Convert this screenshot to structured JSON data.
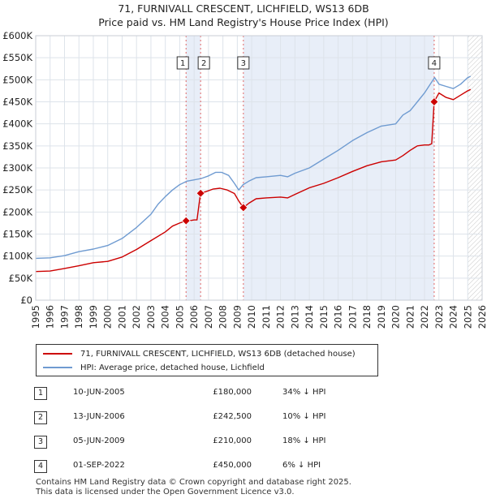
{
  "title_line1": "71, FURNIVALL CRESCENT, LICHFIELD, WS13 6DB",
  "title_line2": "Price paid vs. HM Land Registry's House Price Index (HPI)",
  "colors": {
    "hpi": "#6f9bd1",
    "price": "#cc0000",
    "shade": "#e8eef8",
    "grid": "#dde3ea",
    "hatch": "#999999"
  },
  "chart_data": {
    "type": "line",
    "title": "71, FURNIVALL CRESCENT, LICHFIELD, WS13 6DB — Price paid vs. HM Land Registry's House Price Index (HPI)",
    "xlabel": "",
    "ylabel": "",
    "xlim": [
      1995,
      2026
    ],
    "ylim": [
      0,
      600000
    ],
    "x_ticks": [
      1995,
      1996,
      1997,
      1998,
      1999,
      2000,
      2001,
      2002,
      2003,
      2004,
      2005,
      2006,
      2007,
      2008,
      2009,
      2010,
      2011,
      2012,
      2013,
      2014,
      2015,
      2016,
      2017,
      2018,
      2019,
      2020,
      2021,
      2022,
      2023,
      2024,
      2025,
      2026
    ],
    "y_ticks": [
      0,
      50000,
      100000,
      150000,
      200000,
      250000,
      300000,
      350000,
      400000,
      450000,
      500000,
      550000,
      600000
    ],
    "y_tick_labels": [
      "£0",
      "£50K",
      "£100K",
      "£150K",
      "£200K",
      "£250K",
      "£300K",
      "£350K",
      "£400K",
      "£450K",
      "£500K",
      "£550K",
      "£600K"
    ],
    "projection_start": 2025.0,
    "series": [
      {
        "name": "HPI: Average price, detached house, Lichfield",
        "x": [
          1995.0,
          1996.0,
          1997.0,
          1998.0,
          1999.0,
          2000.0,
          2001.0,
          2002.0,
          2003.0,
          2003.5,
          2004.0,
          2004.5,
          2005.0,
          2005.5,
          2006.0,
          2006.5,
          2007.0,
          2007.5,
          2007.9,
          2008.4,
          2008.8,
          2009.1,
          2009.4,
          2009.8,
          2010.3,
          2011.0,
          2012.0,
          2012.5,
          2013.0,
          2014.0,
          2015.0,
          2016.0,
          2017.0,
          2018.0,
          2019.0,
          2020.0,
          2020.5,
          2021.0,
          2021.5,
          2022.0,
          2022.4,
          2022.7,
          2023.0,
          2023.5,
          2024.0,
          2024.5,
          2025.0,
          2025.2
        ],
        "values": [
          95000,
          96000,
          101000,
          110000,
          116000,
          124000,
          140000,
          165000,
          195000,
          218000,
          235000,
          250000,
          262000,
          270000,
          273000,
          276000,
          282000,
          290000,
          290000,
          283000,
          265000,
          250000,
          262000,
          270000,
          278000,
          280000,
          283000,
          280000,
          288000,
          300000,
          320000,
          340000,
          362000,
          380000,
          395000,
          400000,
          420000,
          430000,
          450000,
          470000,
          490000,
          505000,
          490000,
          485000,
          480000,
          490000,
          505000,
          508000
        ]
      },
      {
        "name": "71, FURNIVALL CRESCENT, LICHFIELD, WS13 6DB (detached house)",
        "x": [
          1995.0,
          1996.0,
          1997.0,
          1998.0,
          1999.0,
          2000.0,
          2001.0,
          2002.0,
          2003.0,
          2004.0,
          2004.5,
          2005.0,
          2005.44,
          2005.8,
          2006.0,
          2006.2,
          2006.44,
          2006.8,
          2007.3,
          2007.8,
          2008.3,
          2008.8,
          2009.1,
          2009.42,
          2009.8,
          2010.3,
          2011.0,
          2012.0,
          2012.5,
          2013.0,
          2014.0,
          2015.0,
          2016.0,
          2017.0,
          2018.0,
          2019.0,
          2020.0,
          2020.5,
          2021.0,
          2021.5,
          2022.0,
          2022.3,
          2022.5,
          2022.67,
          2023.0,
          2023.5,
          2024.0,
          2024.5,
          2025.0,
          2025.2
        ],
        "values": [
          65000,
          66000,
          72000,
          78000,
          85000,
          88000,
          98000,
          115000,
          135000,
          155000,
          168000,
          175000,
          180000,
          181000,
          182000,
          182000,
          242500,
          246000,
          252000,
          254000,
          250000,
          242000,
          225000,
          210000,
          220000,
          230000,
          232000,
          234000,
          232000,
          240000,
          255000,
          265000,
          278000,
          292000,
          305000,
          314000,
          318000,
          328000,
          340000,
          350000,
          352000,
          352000,
          355000,
          450000,
          470000,
          460000,
          455000,
          465000,
          475000,
          478000
        ]
      }
    ],
    "sale_markers": [
      {
        "label": "1",
        "x": 2005.44,
        "value": 180000
      },
      {
        "label": "2",
        "x": 2006.45,
        "value": 242500
      },
      {
        "label": "3",
        "x": 2009.42,
        "value": 210000
      },
      {
        "label": "4",
        "x": 2022.67,
        "value": 450000
      }
    ],
    "highlight_spans": [
      [
        2005.44,
        2006.45
      ],
      [
        2009.42,
        2022.67
      ]
    ]
  },
  "legend": {
    "price_label": "71, FURNIVALL CRESCENT, LICHFIELD, WS13 6DB (detached house)",
    "hpi_label": "HPI: Average price, detached house, Lichfield"
  },
  "sales": [
    {
      "num": "1",
      "date": "10-JUN-2005",
      "price": "£180,000",
      "hpi": "34% ↓ HPI"
    },
    {
      "num": "2",
      "date": "13-JUN-2006",
      "price": "£242,500",
      "hpi": "10% ↓ HPI"
    },
    {
      "num": "3",
      "date": "05-JUN-2009",
      "price": "£210,000",
      "hpi": "18% ↓ HPI"
    },
    {
      "num": "4",
      "date": "01-SEP-2022",
      "price": "£450,000",
      "hpi": "6% ↓ HPI"
    }
  ],
  "footer_line1": "Contains HM Land Registry data © Crown copyright and database right 2025.",
  "footer_line2": "This data is licensed under the Open Government Licence v3.0."
}
